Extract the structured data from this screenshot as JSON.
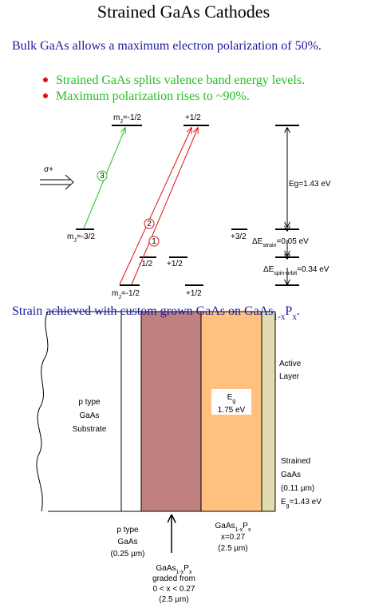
{
  "title": "Strained GaAs Cathodes",
  "intro": "Bulk GaAs allows a maximum electron polarization of 50%.",
  "bullets": [
    "Strained GaAs splits valence band energy levels.",
    "Maximum polarization rises to ~90%."
  ],
  "energy_diagram": {
    "excitation": "σ+",
    "transitions": [
      "3",
      "2",
      "1"
    ],
    "level_labels": [
      [
        "m",
        {
          "sub": "J"
        },
        "=-1/2"
      ],
      "+1/2",
      [
        "m",
        {
          "sub": "J"
        },
        "=-3/2"
      ],
      "-1/2",
      "+1/2",
      [
        "m",
        {
          "sub": "J"
        },
        "=-1/2"
      ],
      "+1/2",
      "+3/2"
    ],
    "energy_labels": [
      "Eg=1.43 eV",
      [
        "ΔE",
        {
          "sub": "strain"
        },
        "=0.05 eV"
      ],
      [
        "ΔE",
        {
          "sub": "spin-orbit"
        },
        "=0.34 eV"
      ]
    ]
  },
  "strain_heading": [
    "Strain achieved with custom grown GaAs on GaAs",
    {
      "sub": "1-x"
    },
    "P",
    {
      "sub": "x"
    },
    "."
  ],
  "layers": {
    "active": [
      "Active",
      "Layer"
    ],
    "substrate": [
      "p type",
      "GaAs",
      "Substrate"
    ],
    "graded_gap": [
      [
        "E",
        {
          "sub": "g"
        }
      ],
      "1.75 eV"
    ],
    "strained": [
      "Strained",
      "GaAs",
      "(0.11 µm)",
      [
        "E",
        {
          "sub": "g"
        },
        "=1.43 eV"
      ]
    ],
    "p_type": [
      "p type",
      "GaAs",
      "(0.25 µm)"
    ],
    "buffer": [
      [
        "GaAs",
        {
          "sub": "1-x"
        },
        "P",
        {
          "sub": "x"
        }
      ],
      "x=0.27",
      "(2.5 µm)"
    ],
    "graded": [
      [
        "GaAs",
        {
          "sub": "1-x"
        },
        "P",
        {
          "sub": "x"
        }
      ],
      "graded from",
      "0 < x < 0.27",
      "(2.5 µm)"
    ]
  }
}
